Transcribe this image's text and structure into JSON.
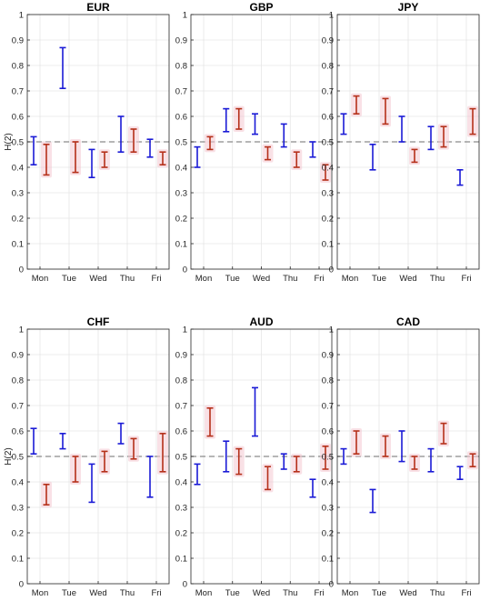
{
  "colors": {
    "series1": "#1a1ad6",
    "series2": "#b5301a",
    "band": "#f4c8d2",
    "reference": "#8a8a8a",
    "grid": "#e6e6e6"
  },
  "chart_data": [
    {
      "type": "errorbar",
      "title": "EUR",
      "ylabel": "H(2)",
      "categories": [
        "Mon",
        "Tue",
        "Wed",
        "Thu",
        "Fri"
      ],
      "ylim": [
        0,
        1
      ],
      "yticks": [
        "0",
        "0.1",
        "0.2",
        "0.3",
        "0.4",
        "0.5",
        "0.6",
        "0.7",
        "0.8",
        "0.9",
        "1"
      ],
      "reference_line": 0.5,
      "series": [
        {
          "ranges": [
            [
              0.41,
              0.52
            ],
            [
              0.71,
              0.87
            ],
            [
              0.36,
              0.47
            ],
            [
              0.46,
              0.6
            ],
            [
              0.44,
              0.51
            ]
          ]
        },
        {
          "ranges": [
            [
              0.37,
              0.49
            ],
            [
              0.38,
              0.5
            ],
            [
              0.4,
              0.46
            ],
            [
              0.46,
              0.55
            ],
            [
              0.41,
              0.46
            ]
          ]
        }
      ]
    },
    {
      "type": "errorbar",
      "title": "GBP",
      "categories": [
        "Mon",
        "Tue",
        "Wed",
        "Thu",
        "Fri"
      ],
      "ylim": [
        0,
        1
      ],
      "yticks": [
        "0",
        "0.1",
        "0.2",
        "0.3",
        "0.4",
        "0.5",
        "0.6",
        "0.7",
        "0.8",
        "0.9",
        "1"
      ],
      "reference_line": 0.5,
      "series": [
        {
          "ranges": [
            [
              0.4,
              0.48
            ],
            [
              0.54,
              0.63
            ],
            [
              0.53,
              0.61
            ],
            [
              0.48,
              0.57
            ],
            [
              0.44,
              0.5
            ]
          ]
        },
        {
          "ranges": [
            [
              0.47,
              0.52
            ],
            [
              0.55,
              0.63
            ],
            [
              0.43,
              0.48
            ],
            [
              0.4,
              0.46
            ],
            [
              0.35,
              0.41
            ]
          ]
        }
      ]
    },
    {
      "type": "errorbar",
      "title": "JPY",
      "categories": [
        "Mon",
        "Tue",
        "Wed",
        "Thu",
        "Fri"
      ],
      "ylim": [
        0,
        1
      ],
      "yticks": [
        "0",
        "0.1",
        "0.2",
        "0.3",
        "0.4",
        "0.5",
        "0.6",
        "0.7",
        "0.8",
        "0.9",
        "1"
      ],
      "reference_line": 0.5,
      "series": [
        {
          "ranges": [
            [
              0.53,
              0.61
            ],
            [
              0.39,
              0.49
            ],
            [
              0.5,
              0.6
            ],
            [
              0.47,
              0.56
            ],
            [
              0.33,
              0.39
            ]
          ]
        },
        {
          "ranges": [
            [
              0.61,
              0.68
            ],
            [
              0.57,
              0.67
            ],
            [
              0.42,
              0.47
            ],
            [
              0.48,
              0.56
            ],
            [
              0.53,
              0.63
            ]
          ]
        }
      ]
    },
    {
      "type": "errorbar",
      "title": "CHF",
      "ylabel": "H(2)",
      "categories": [
        "Mon",
        "Tue",
        "Wed",
        "Thu",
        "Fri"
      ],
      "ylim": [
        0,
        1
      ],
      "yticks": [
        "0",
        "0.1",
        "0.2",
        "0.3",
        "0.4",
        "0.5",
        "0.6",
        "0.7",
        "0.8",
        "0.9",
        "1"
      ],
      "reference_line": 0.5,
      "series": [
        {
          "ranges": [
            [
              0.51,
              0.61
            ],
            [
              0.53,
              0.59
            ],
            [
              0.32,
              0.47
            ],
            [
              0.55,
              0.63
            ],
            [
              0.34,
              0.5
            ]
          ]
        },
        {
          "ranges": [
            [
              0.31,
              0.39
            ],
            [
              0.4,
              0.5
            ],
            [
              0.44,
              0.52
            ],
            [
              0.49,
              0.57
            ],
            [
              0.44,
              0.59
            ]
          ]
        }
      ]
    },
    {
      "type": "errorbar",
      "title": "AUD",
      "categories": [
        "Mon",
        "Tue",
        "Wed",
        "Thu",
        "Fri"
      ],
      "ylim": [
        0,
        1
      ],
      "yticks": [
        "0",
        "0.1",
        "0.2",
        "0.3",
        "0.4",
        "0.5",
        "0.6",
        "0.7",
        "0.8",
        "0.9",
        "1"
      ],
      "reference_line": 0.5,
      "series": [
        {
          "ranges": [
            [
              0.39,
              0.47
            ],
            [
              0.44,
              0.56
            ],
            [
              0.58,
              0.77
            ],
            [
              0.45,
              0.51
            ],
            [
              0.34,
              0.41
            ]
          ]
        },
        {
          "ranges": [
            [
              0.58,
              0.69
            ],
            [
              0.43,
              0.53
            ],
            [
              0.37,
              0.46
            ],
            [
              0.44,
              0.5
            ],
            [
              0.45,
              0.54
            ]
          ]
        }
      ]
    },
    {
      "type": "errorbar",
      "title": "CAD",
      "categories": [
        "Mon",
        "Tue",
        "Wed",
        "Thu",
        "Fri"
      ],
      "ylim": [
        0,
        1
      ],
      "yticks": [
        "0",
        "0.1",
        "0.2",
        "0.3",
        "0.4",
        "0.5",
        "0.6",
        "0.7",
        "0.8",
        "0.9",
        "1"
      ],
      "reference_line": 0.5,
      "series": [
        {
          "ranges": [
            [
              0.47,
              0.53
            ],
            [
              0.28,
              0.37
            ],
            [
              0.48,
              0.6
            ],
            [
              0.44,
              0.53
            ],
            [
              0.41,
              0.46
            ]
          ]
        },
        {
          "ranges": [
            [
              0.51,
              0.6
            ],
            [
              0.5,
              0.58
            ],
            [
              0.45,
              0.5
            ],
            [
              0.55,
              0.63
            ],
            [
              0.46,
              0.51
            ]
          ]
        }
      ]
    }
  ]
}
